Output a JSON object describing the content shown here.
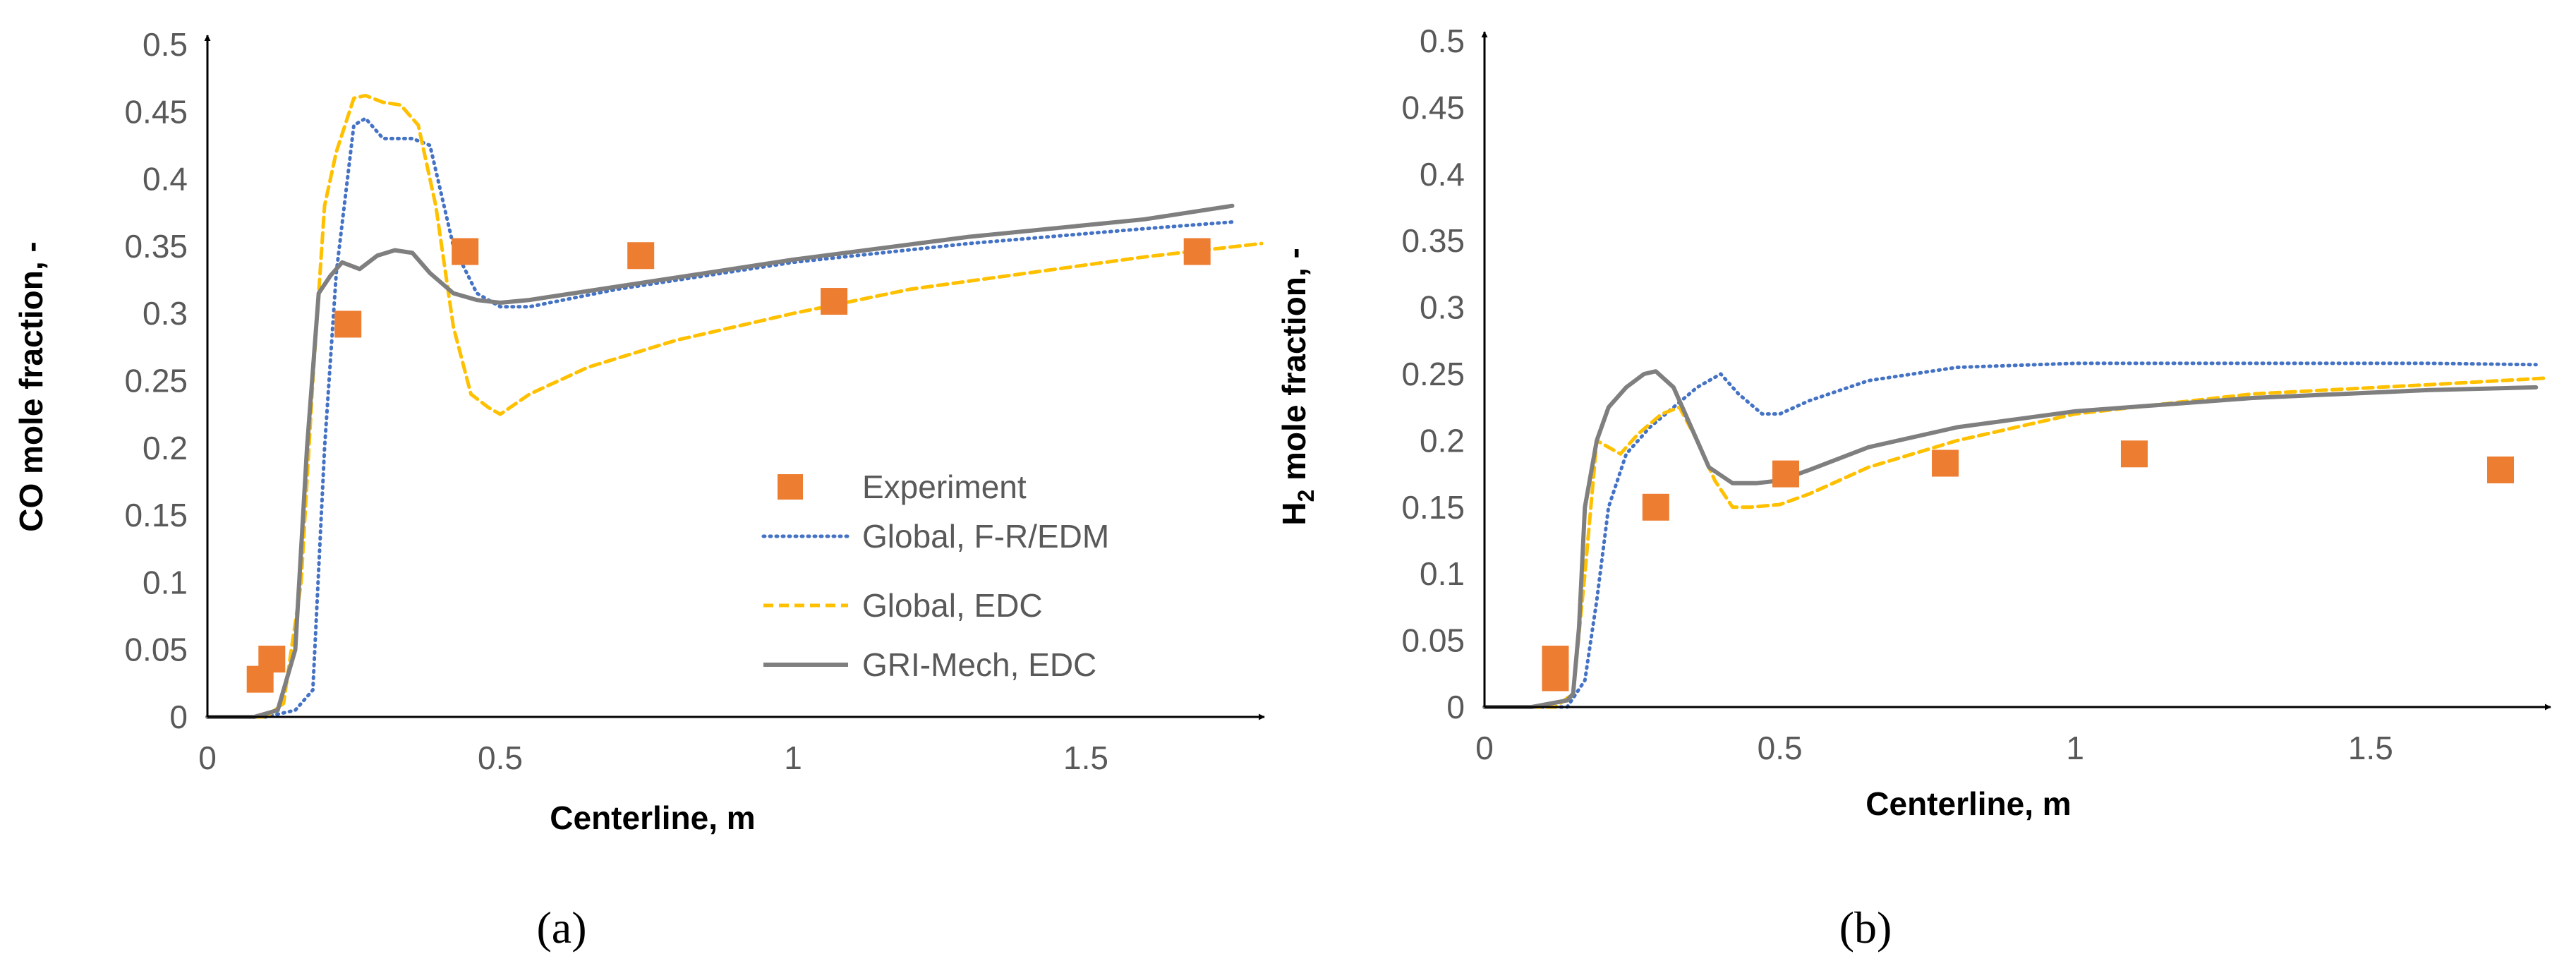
{
  "chart_data": [
    {
      "type": "line",
      "panel_label": "(a)",
      "xlabel": "Centerline, m",
      "ylabel": "CO mole fraction, -",
      "xlim": [
        0,
        1.8
      ],
      "ylim": [
        0,
        0.5
      ],
      "x_ticks": [
        0,
        0.5,
        1,
        1.5
      ],
      "x_tick_labels": [
        "0",
        "0.5",
        "1",
        "1.5"
      ],
      "y_ticks": [
        0,
        0.05,
        0.1,
        0.15,
        0.2,
        0.25,
        0.3,
        0.35,
        0.4,
        0.45,
        0.5
      ],
      "y_tick_labels": [
        "0",
        "0.05",
        "0.1",
        "0.15",
        "0.2",
        "0.25",
        "0.3",
        "0.35",
        "0.4",
        "0.45",
        "0.5"
      ],
      "grid": false,
      "legend": "center-right",
      "series": [
        {
          "name": "Experiment",
          "style": "markers",
          "color": "#ED7D31",
          "x": [
            0.09,
            0.11,
            0.24,
            0.44,
            0.74,
            1.07,
            1.69
          ],
          "y": [
            0.028,
            0.043,
            0.292,
            0.346,
            0.343,
            0.309,
            0.346
          ]
        },
        {
          "name": "Global, F-R/EDM",
          "style": "dotted",
          "color": "#4472C4",
          "x": [
            0,
            0.1,
            0.15,
            0.18,
            0.2,
            0.22,
            0.25,
            0.27,
            0.3,
            0.35,
            0.38,
            0.42,
            0.46,
            0.5,
            0.55,
            0.7,
            1.0,
            1.3,
            1.6,
            1.75
          ],
          "y": [
            0,
            0,
            0.005,
            0.02,
            0.2,
            0.33,
            0.44,
            0.445,
            0.43,
            0.43,
            0.425,
            0.35,
            0.315,
            0.305,
            0.305,
            0.318,
            0.338,
            0.352,
            0.363,
            0.368
          ]
        },
        {
          "name": "Global, EDC",
          "style": "dashed",
          "color": "#FFC000",
          "x": [
            0,
            0.1,
            0.13,
            0.16,
            0.18,
            0.2,
            0.22,
            0.25,
            0.27,
            0.3,
            0.33,
            0.36,
            0.39,
            0.42,
            0.45,
            0.48,
            0.5,
            0.55,
            0.65,
            0.8,
            1.0,
            1.2,
            1.4,
            1.6,
            1.8
          ],
          "y": [
            0,
            0,
            0.01,
            0.1,
            0.25,
            0.38,
            0.42,
            0.46,
            0.462,
            0.457,
            0.455,
            0.44,
            0.38,
            0.29,
            0.24,
            0.23,
            0.225,
            0.24,
            0.26,
            0.28,
            0.3,
            0.318,
            0.33,
            0.342,
            0.352
          ]
        },
        {
          "name": "GRI-Mech, EDC",
          "style": "solid",
          "color": "#7F7F7F",
          "x": [
            0,
            0.08,
            0.12,
            0.15,
            0.17,
            0.19,
            0.21,
            0.23,
            0.26,
            0.29,
            0.32,
            0.35,
            0.38,
            0.42,
            0.46,
            0.5,
            0.55,
            0.7,
            1.0,
            1.3,
            1.6,
            1.75
          ],
          "y": [
            0,
            0,
            0.005,
            0.05,
            0.2,
            0.315,
            0.328,
            0.338,
            0.333,
            0.343,
            0.347,
            0.345,
            0.33,
            0.315,
            0.31,
            0.308,
            0.31,
            0.32,
            0.34,
            0.357,
            0.37,
            0.38
          ]
        }
      ]
    },
    {
      "type": "line",
      "panel_label": "(b)",
      "xlabel": "Centerline, m",
      "ylabel_prefix": "H",
      "ylabel_sub": "2",
      "ylabel_suffix": " mole fraction, -",
      "xlim": [
        0,
        1.8
      ],
      "ylim": [
        0,
        0.5
      ],
      "x_ticks": [
        0,
        0.5,
        1,
        1.5
      ],
      "x_tick_labels": [
        "0",
        "0.5",
        "1",
        "1.5"
      ],
      "y_ticks": [
        0,
        0.05,
        0.1,
        0.15,
        0.2,
        0.25,
        0.3,
        0.35,
        0.4,
        0.45,
        0.5
      ],
      "y_tick_labels": [
        "0",
        "0.05",
        "0.1",
        "0.15",
        "0.2",
        "0.25",
        "0.3",
        "0.35",
        "0.4",
        "0.45",
        "0.5"
      ],
      "grid": false,
      "legend": "none",
      "series": [
        {
          "name": "Experiment",
          "style": "markers",
          "color": "#ED7D31",
          "x": [
            0.12,
            0.12,
            0.29,
            0.51,
            0.78,
            1.1,
            1.72
          ],
          "y": [
            0.022,
            0.036,
            0.15,
            0.175,
            0.183,
            0.19,
            0.178
          ]
        },
        {
          "name": "Global, F-R/EDM",
          "style": "dotted",
          "color": "#4472C4",
          "x": [
            0,
            0.14,
            0.17,
            0.19,
            0.21,
            0.24,
            0.28,
            0.32,
            0.36,
            0.4,
            0.43,
            0.47,
            0.5,
            0.55,
            0.65,
            0.8,
            1.0,
            1.3,
            1.6,
            1.78
          ],
          "y": [
            0,
            0,
            0.02,
            0.08,
            0.15,
            0.19,
            0.21,
            0.225,
            0.24,
            0.25,
            0.235,
            0.22,
            0.22,
            0.23,
            0.245,
            0.255,
            0.258,
            0.258,
            0.258,
            0.257
          ]
        },
        {
          "name": "Global, EDC",
          "style": "dashed",
          "color": "#FFC000",
          "x": [
            0,
            0.12,
            0.15,
            0.17,
            0.19,
            0.21,
            0.23,
            0.26,
            0.3,
            0.33,
            0.36,
            0.39,
            0.42,
            0.45,
            0.5,
            0.55,
            0.65,
            0.8,
            1.0,
            1.3,
            1.6,
            1.8
          ],
          "y": [
            0,
            0,
            0.01,
            0.1,
            0.2,
            0.195,
            0.19,
            0.205,
            0.22,
            0.225,
            0.2,
            0.17,
            0.15,
            0.15,
            0.152,
            0.16,
            0.18,
            0.2,
            0.22,
            0.235,
            0.242,
            0.247
          ]
        },
        {
          "name": "GRI-Mech, EDC",
          "style": "solid",
          "color": "#7F7F7F",
          "x": [
            0,
            0.08,
            0.14,
            0.15,
            0.16,
            0.17,
            0.19,
            0.21,
            0.24,
            0.27,
            0.29,
            0.32,
            0.35,
            0.38,
            0.42,
            0.46,
            0.5,
            0.55,
            0.65,
            0.8,
            1.0,
            1.3,
            1.6,
            1.78
          ],
          "y": [
            0,
            0,
            0.005,
            0.01,
            0.06,
            0.15,
            0.2,
            0.225,
            0.24,
            0.25,
            0.252,
            0.24,
            0.21,
            0.18,
            0.168,
            0.168,
            0.17,
            0.178,
            0.195,
            0.21,
            0.222,
            0.232,
            0.238,
            0.24
          ]
        }
      ]
    }
  ]
}
